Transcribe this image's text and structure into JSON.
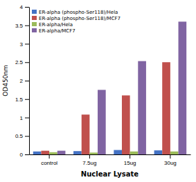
{
  "chart_data": {
    "type": "bar",
    "categories": [
      "control",
      "7.5ug",
      "15ug",
      "30ug"
    ],
    "series": [
      {
        "name": "ER-alpha (phospho-Ser118)/Hela",
        "color": "#4472C4",
        "values": [
          0.08,
          0.09,
          0.12,
          0.11
        ]
      },
      {
        "name": "ER-alpha (phospho-Ser118)/MCF7",
        "color": "#C0504D",
        "values": [
          0.1,
          1.08,
          1.6,
          2.5
        ]
      },
      {
        "name": "ER-alpha/Hela",
        "color": "#9BBB59",
        "values": [
          0.06,
          0.05,
          0.08,
          0.08
        ]
      },
      {
        "name": "ER-alpha/MCF7",
        "color": "#8064A2",
        "values": [
          0.1,
          1.75,
          2.53,
          3.6
        ]
      }
    ],
    "xlabel": "Nuclear Lysate",
    "ylabel": "OD450nm",
    "ylim": [
      0,
      4
    ],
    "yticks": [
      0,
      0.5,
      1,
      1.5,
      2,
      2.5,
      3,
      3.5,
      4
    ],
    "grid": false,
    "legend": "upper left"
  }
}
